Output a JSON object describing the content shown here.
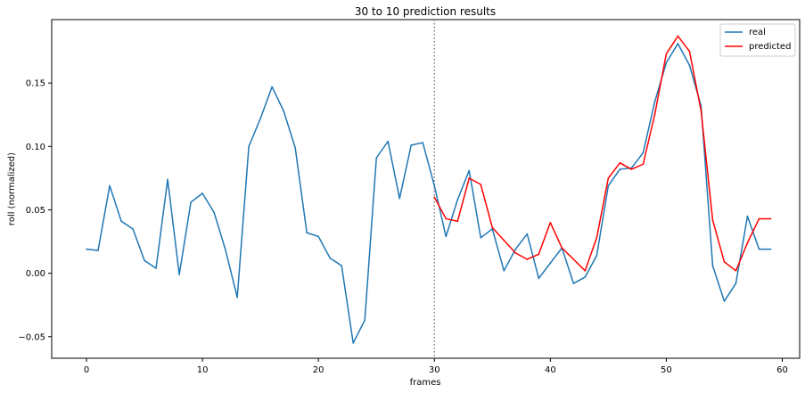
{
  "chart_data": {
    "type": "line",
    "title": "30 to 10 prediction results",
    "xlabel": "frames",
    "ylabel": "roll (normalized)",
    "xlim": [
      -3,
      61.5
    ],
    "ylim": [
      -0.067,
      0.2
    ],
    "xticks": [
      0,
      10,
      20,
      30,
      40,
      50,
      60
    ],
    "yticks": [
      -0.05,
      0.0,
      0.05,
      0.1,
      0.15
    ],
    "ytick_labels": [
      "−0.05",
      "0.00",
      "0.05",
      "0.10",
      "0.15"
    ],
    "vline": {
      "x": 30,
      "style": "dotted",
      "color": "#808080"
    },
    "legend_position": "top-right",
    "series": [
      {
        "name": "real",
        "color": "#1f77b4",
        "x": [
          0,
          1,
          2,
          3,
          4,
          5,
          6,
          7,
          8,
          9,
          10,
          11,
          12,
          13,
          14,
          15,
          16,
          17,
          18,
          19,
          20,
          21,
          22,
          23,
          24,
          25,
          26,
          27,
          28,
          29,
          30,
          31,
          32,
          33,
          34,
          35,
          36,
          37,
          38,
          39,
          40,
          41,
          42,
          43,
          44,
          45,
          46,
          47,
          48,
          49,
          50,
          51,
          52,
          53,
          54,
          55,
          56,
          57,
          58,
          59
        ],
        "y": [
          0.019,
          0.018,
          0.069,
          0.041,
          0.035,
          0.01,
          0.004,
          0.074,
          -0.001,
          0.056,
          0.063,
          0.048,
          0.018,
          -0.019,
          0.1,
          0.122,
          0.147,
          0.128,
          0.099,
          0.032,
          0.029,
          0.012,
          0.006,
          -0.055,
          -0.037,
          0.091,
          0.104,
          0.059,
          0.101,
          0.103,
          0.069,
          0.029,
          0.058,
          0.081,
          0.028,
          0.035,
          0.002,
          0.019,
          0.031,
          -0.004,
          0.008,
          0.02,
          -0.008,
          -0.003,
          0.014,
          0.069,
          0.082,
          0.083,
          0.095,
          0.135,
          0.166,
          0.181,
          0.164,
          0.132,
          0.006,
          -0.022,
          -0.008,
          0.045,
          0.019,
          0.019
        ]
      },
      {
        "name": "predicted",
        "color": "#ff0000",
        "x": [
          30,
          31,
          32,
          33,
          34,
          35,
          36,
          37,
          38,
          39,
          40,
          41,
          42,
          43,
          44,
          45,
          46,
          47,
          48,
          49,
          50,
          51,
          52,
          53,
          54,
          55,
          56,
          57,
          58,
          59
        ],
        "y": [
          0.06,
          0.043,
          0.041,
          0.075,
          0.07,
          0.036,
          0.026,
          0.016,
          0.011,
          0.015,
          0.04,
          0.02,
          0.011,
          0.002,
          0.028,
          0.075,
          0.087,
          0.082,
          0.086,
          0.125,
          0.173,
          0.187,
          0.175,
          0.128,
          0.042,
          0.009,
          0.002,
          0.024,
          0.043,
          0.043
        ]
      }
    ]
  }
}
